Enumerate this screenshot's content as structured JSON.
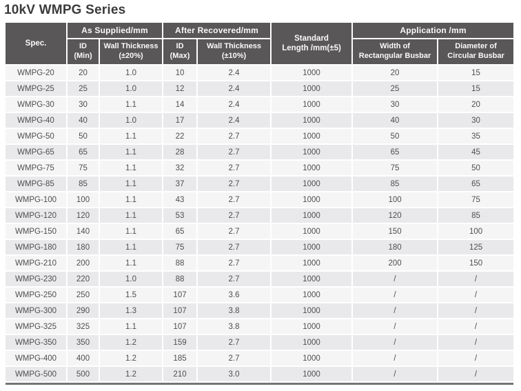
{
  "page": {
    "title": "10kV WMPG Series"
  },
  "colors": {
    "header_background": "#595757",
    "header_text": "#fafafa",
    "row_light": "#f5f5f6",
    "row_dark": "#e9e9eb",
    "data_text": "#4e4e50",
    "title_text": "#3b3b3b",
    "bottom_bar": "#747474"
  },
  "table": {
    "headers": {
      "spec": "Spec.",
      "as_supplied": "As Supplied/mm",
      "after_recovered": "After Recovered/mm",
      "standard_length_line1": "Standard",
      "standard_length_line2": "Length /mm(±5)",
      "application": "Application /mm",
      "id_min_line1": "ID",
      "id_min_line2": "(Min)",
      "wall_thickness_20_line1": "Wall Thickness",
      "wall_thickness_20_line2": "(±20%)",
      "id_max_line1": "ID",
      "id_max_line2": "(Max)",
      "wall_thickness_10_line1": "Wall Thickness",
      "wall_thickness_10_line2": "(±10%)",
      "width_rect_line1": "Width of",
      "width_rect_line2": "Rectangular Busbar",
      "dia_circ_line1": "Diameter of",
      "dia_circ_line2": "Circular Busbar"
    },
    "rows": [
      [
        "WMPG-20",
        "20",
        "1.0",
        "10",
        "2.4",
        "1000",
        "20",
        "15"
      ],
      [
        "WMPG-25",
        "25",
        "1.0",
        "12",
        "2.4",
        "1000",
        "25",
        "15"
      ],
      [
        "WMPG-30",
        "30",
        "1.1",
        "14",
        "2.4",
        "1000",
        "30",
        "20"
      ],
      [
        "WMPG-40",
        "40",
        "1.0",
        "17",
        "2.4",
        "1000",
        "40",
        "30"
      ],
      [
        "WMPG-50",
        "50",
        "1.1",
        "22",
        "2.7",
        "1000",
        "50",
        "35"
      ],
      [
        "WMPG-65",
        "65",
        "1.1",
        "28",
        "2.7",
        "1000",
        "65",
        "45"
      ],
      [
        "WMPG-75",
        "75",
        "1.1",
        "32",
        "2.7",
        "1000",
        "75",
        "50"
      ],
      [
        "WMPG-85",
        "85",
        "1.1",
        "37",
        "2.7",
        "1000",
        "85",
        "65"
      ],
      [
        "WMPG-100",
        "100",
        "1.1",
        "43",
        "2.7",
        "1000",
        "100",
        "75"
      ],
      [
        "WMPG-120",
        "120",
        "1.1",
        "53",
        "2.7",
        "1000",
        "120",
        "85"
      ],
      [
        "WMPG-150",
        "140",
        "1.1",
        "65",
        "2.7",
        "1000",
        "150",
        "100"
      ],
      [
        "WMPG-180",
        "180",
        "1.1",
        "75",
        "2.7",
        "1000",
        "180",
        "125"
      ],
      [
        "WMPG-210",
        "200",
        "1.1",
        "88",
        "2.7",
        "1000",
        "200",
        "150"
      ],
      [
        "WMPG-230",
        "220",
        "1.0",
        "88",
        "2.7",
        "1000",
        "/",
        "/"
      ],
      [
        "WMPG-250",
        "250",
        "1.5",
        "107",
        "3.6",
        "1000",
        "/",
        "/"
      ],
      [
        "WMPG-300",
        "290",
        "1.3",
        "107",
        "3.8",
        "1000",
        "/",
        "/"
      ],
      [
        "WMPG-325",
        "325",
        "1.1",
        "107",
        "3.8",
        "1000",
        "/",
        "/"
      ],
      [
        "WMPG-350",
        "350",
        "1.2",
        "159",
        "2.7",
        "1000",
        "/",
        "/"
      ],
      [
        "WMPG-400",
        "400",
        "1.2",
        "185",
        "2.7",
        "1000",
        "/",
        "/"
      ],
      [
        "WMPG-500",
        "500",
        "1.2",
        "210",
        "3.0",
        "1000",
        "/",
        "/"
      ]
    ]
  }
}
